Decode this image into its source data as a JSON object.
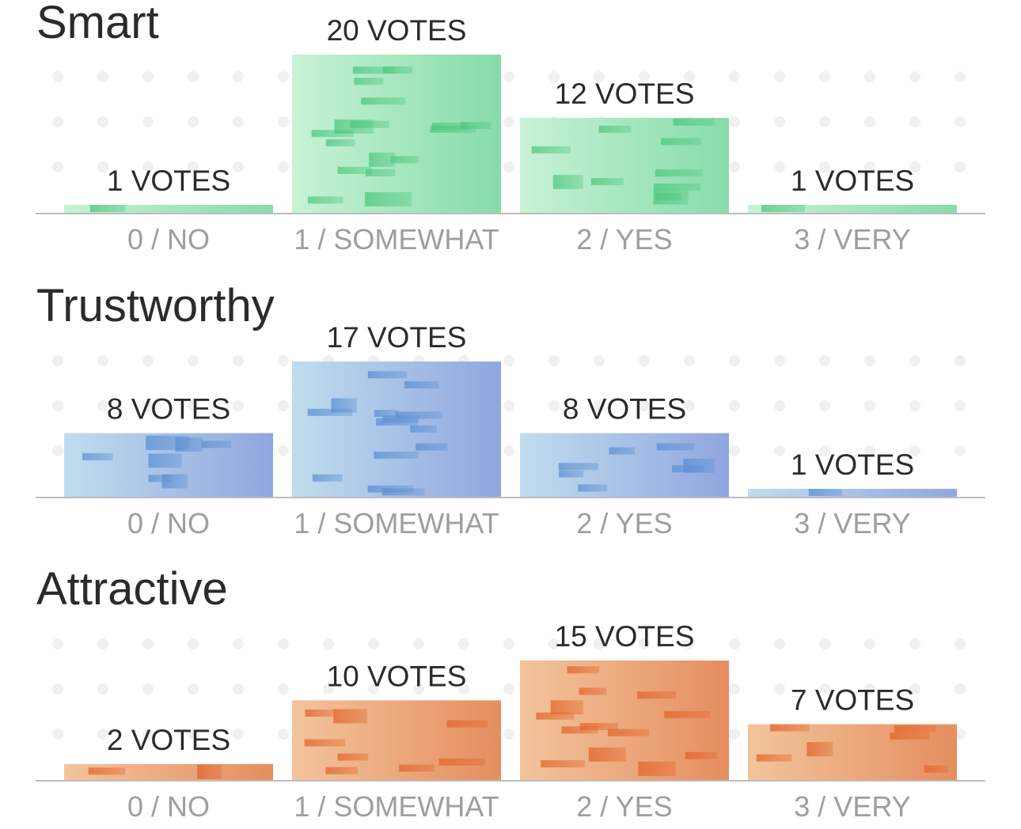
{
  "chart_data": [
    {
      "type": "bar",
      "title": "Smart",
      "categories": [
        "0 / NO",
        "1 / SOMEWHAT",
        "2 / YES",
        "3 / VERY"
      ],
      "values": [
        1,
        20,
        12,
        1
      ],
      "value_labels": [
        "1 VOTES",
        "20 VOTES",
        "12 VOTES",
        "1 VOTES"
      ],
      "ylim": [
        0,
        20
      ],
      "grid": "dotted",
      "colors": {
        "light": "#c8f2d6",
        "dark": "#86dca9",
        "accent": "#4fc77f"
      }
    },
    {
      "type": "bar",
      "title": "Trustworthy",
      "categories": [
        "0 / NO",
        "1 / SOMEWHAT",
        "2 / YES",
        "3 / VERY"
      ],
      "values": [
        8,
        17,
        8,
        1
      ],
      "value_labels": [
        "8 VOTES",
        "17 VOTES",
        "8 VOTES",
        "1 VOTES"
      ],
      "ylim": [
        0,
        17
      ],
      "grid": "dotted",
      "colors": {
        "light": "#c0ddee",
        "dark": "#90a6df",
        "accent": "#5c8fd3"
      }
    },
    {
      "type": "bar",
      "title": "Attractive",
      "categories": [
        "0 / NO",
        "1 / SOMEWHAT",
        "2 / YES",
        "3 / VERY"
      ],
      "values": [
        2,
        10,
        15,
        7
      ],
      "value_labels": [
        "2 VOTES",
        "10 VOTES",
        "15 VOTES",
        "7 VOTES"
      ],
      "ylim": [
        0,
        15
      ],
      "grid": "dotted",
      "colors": {
        "light": "#f3c49c",
        "dark": "#e58e5f",
        "accent": "#e2642a"
      }
    }
  ]
}
